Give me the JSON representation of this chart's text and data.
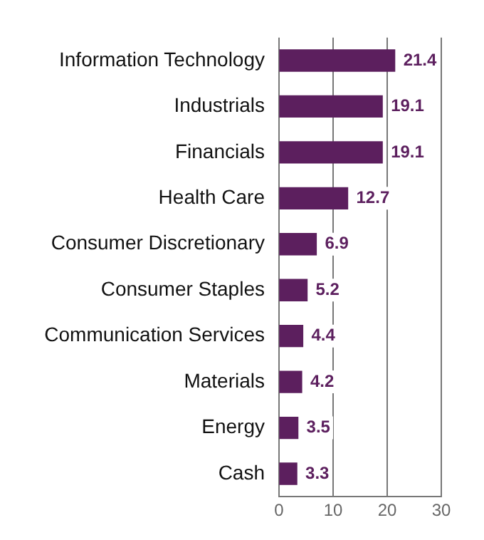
{
  "chart_data": {
    "type": "bar",
    "orientation": "horizontal",
    "categories": [
      "Information Technology",
      "Industrials",
      "Financials",
      "Health Care",
      "Consumer Discretionary",
      "Consumer Staples",
      "Communication Services",
      "Materials",
      "Energy",
      "Cash"
    ],
    "values": [
      21.4,
      19.1,
      19.1,
      12.7,
      6.9,
      5.2,
      4.4,
      4.2,
      3.5,
      3.3
    ],
    "color": "#5c1f5e",
    "xlim": [
      0,
      30
    ],
    "xticks": [
      0,
      10,
      20,
      30
    ],
    "grid": "x",
    "data_labels": true
  }
}
